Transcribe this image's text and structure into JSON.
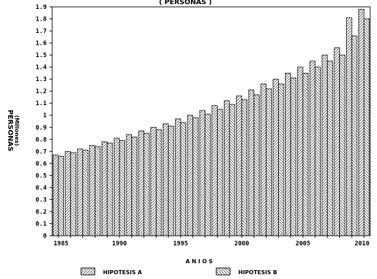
{
  "chart_data": {
    "type": "bar",
    "title": "( PERSONAS )",
    "xlabel": "A N I O S",
    "ylabel": "PERSONAS",
    "ylabel_sub": "(Millones)",
    "ylim": [
      0,
      1.9
    ],
    "yticks": [
      "0",
      "0.1",
      "0.2",
      "0.3",
      "0.4",
      "0.5",
      "0.6",
      "0.7",
      "0.8",
      "0.9",
      "1",
      "1.1",
      "1.2",
      "1.3",
      "1.4",
      "1.5",
      "1.6",
      "1.7",
      "1.8",
      "1.9"
    ],
    "ytick_values": [
      0,
      0.1,
      0.2,
      0.3,
      0.4,
      0.5,
      0.6,
      0.7,
      0.8,
      0.9,
      1.0,
      1.1,
      1.2,
      1.3,
      1.4,
      1.5,
      1.6,
      1.7,
      1.8,
      1.9
    ],
    "xticks": [
      "1985",
      "1990",
      "1995",
      "2000",
      "2005",
      "2010"
    ],
    "categories": [
      1985,
      1986,
      1987,
      1988,
      1989,
      1990,
      1991,
      1992,
      1993,
      1994,
      1995,
      1996,
      1997,
      1998,
      1999,
      2000,
      2001,
      2002,
      2003,
      2004,
      2005,
      2006,
      2007,
      2008,
      2009,
      2010
    ],
    "series": [
      {
        "name": "HIPOTESIS A",
        "pattern": "forward-hatch",
        "values": [
          0.67,
          0.7,
          0.72,
          0.75,
          0.78,
          0.81,
          0.84,
          0.87,
          0.9,
          0.93,
          0.97,
          1.0,
          1.04,
          1.08,
          1.12,
          1.16,
          1.21,
          1.26,
          1.3,
          1.35,
          1.4,
          1.45,
          1.5,
          1.56,
          1.81,
          1.88
        ]
      },
      {
        "name": "HIPOTESIS B",
        "pattern": "back-hatch",
        "values": [
          0.66,
          0.69,
          0.71,
          0.74,
          0.77,
          0.79,
          0.82,
          0.85,
          0.88,
          0.91,
          0.94,
          0.98,
          1.01,
          1.05,
          1.09,
          1.13,
          1.17,
          1.22,
          1.26,
          1.31,
          1.35,
          1.4,
          1.45,
          1.5,
          1.66,
          1.8
        ]
      }
    ],
    "grid": false,
    "legend": "bottom"
  }
}
